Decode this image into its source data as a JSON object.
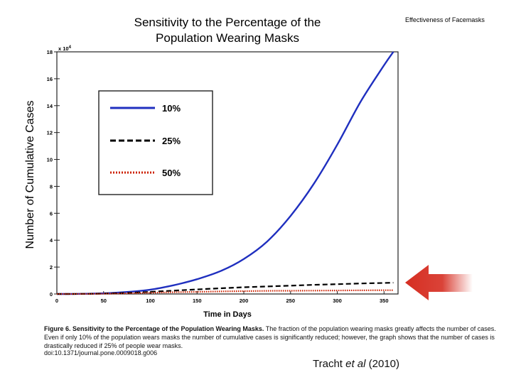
{
  "corner_note": "Effectiveness of Facemasks",
  "chart_data": {
    "type": "line",
    "title_lines": [
      "Sensitivity to the Percentage of the",
      "Population Wearing Masks"
    ],
    "xlabel": "Time in Days",
    "ylabel": "Number of Cumulative Cases",
    "y_multiplier": "x 10",
    "y_multiplier_exp": "4",
    "xlim": [
      0,
      365
    ],
    "ylim": [
      0,
      18
    ],
    "x_ticks": [
      0,
      50,
      100,
      150,
      200,
      250,
      300,
      350
    ],
    "y_ticks": [
      0,
      2,
      4,
      6,
      8,
      10,
      12,
      14,
      16,
      18
    ],
    "x": [
      0,
      25,
      50,
      75,
      100,
      125,
      150,
      175,
      200,
      225,
      250,
      275,
      300,
      325,
      350,
      360
    ],
    "series": [
      {
        "name": "10%",
        "color": "#1f2fbf",
        "style": "solid",
        "values": [
          0,
          0.01,
          0.05,
          0.15,
          0.32,
          0.65,
          1.1,
          1.7,
          2.6,
          3.9,
          5.8,
          8.2,
          11.1,
          14.3,
          17.0,
          18.0
        ]
      },
      {
        "name": "25%",
        "color": "#000000",
        "style": "dashed",
        "values": [
          0,
          0.005,
          0.03,
          0.08,
          0.16,
          0.25,
          0.34,
          0.42,
          0.5,
          0.56,
          0.62,
          0.68,
          0.73,
          0.78,
          0.82,
          0.84
        ]
      },
      {
        "name": "50%",
        "color": "#cc2200",
        "style": "dotted",
        "values": [
          0,
          0.003,
          0.02,
          0.05,
          0.09,
          0.13,
          0.16,
          0.19,
          0.21,
          0.23,
          0.24,
          0.25,
          0.26,
          0.27,
          0.28,
          0.28
        ]
      }
    ],
    "legend_position": "upper-left"
  },
  "caption": {
    "figure_label": "Figure 6. Sensitivity to the Percentage of the Population Wearing Masks.",
    "text": "The fraction of the population wearing masks greatly affects the number of cases. Even if only 10% of the population wears masks the number of cumulative cases is significantly reduced; however, the graph shows that the number of cases is drastically reduced if 25% of people wear masks.",
    "doi": "doi:10.1371/journal.pone.0009018.g006"
  },
  "citation": {
    "author": "Tracht ",
    "etal": "et al",
    "year": " (2010)"
  },
  "arrow_color": "#d62e22"
}
